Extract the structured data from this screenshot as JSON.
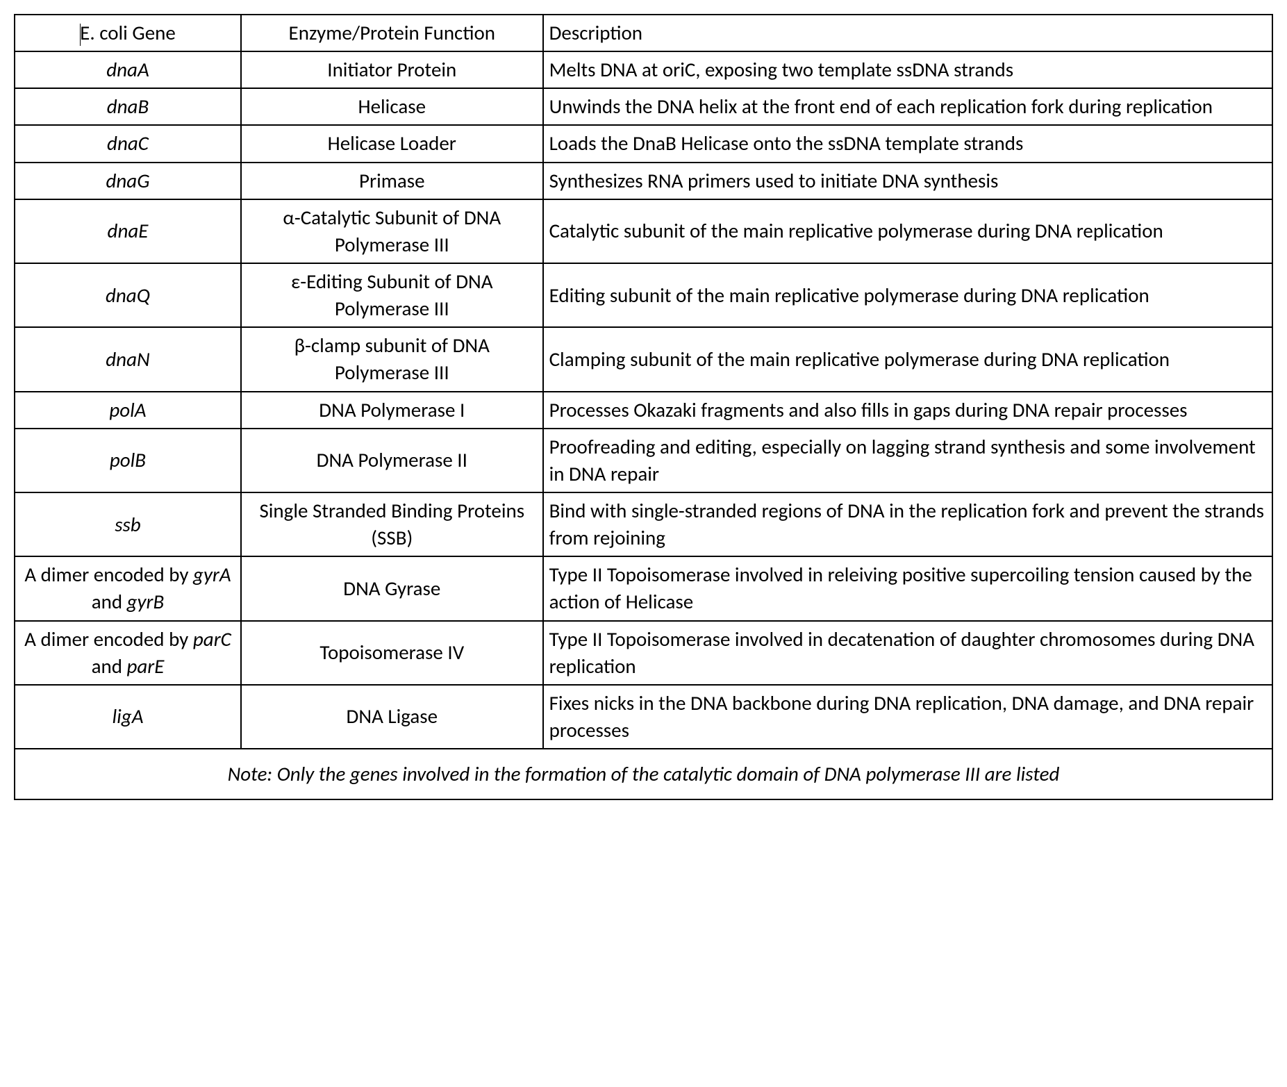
{
  "table": {
    "border_color": "#000000",
    "background_color": "#ffffff",
    "text_color": "#000000",
    "font_family": "Calibri",
    "header_fontsize": 29,
    "cell_fontsize": 29,
    "border_width": 2,
    "columns": [
      {
        "key": "gene",
        "label": "E. coli Gene",
        "width_pct": 18,
        "align": "center"
      },
      {
        "key": "function",
        "label": "Enzyme/Protein Function",
        "width_pct": 24,
        "align": "center"
      },
      {
        "key": "description",
        "label": "Description",
        "width_pct": 58,
        "align": "left"
      }
    ],
    "header": {
      "gene_prefix": "E. coli",
      "gene_suffix": " Gene",
      "function": "Enzyme/Protein Function",
      "description": "Description"
    },
    "rows": [
      {
        "gene_html": "<i>dnaA</i>",
        "function": "Initiator Protein",
        "description": "Melts DNA at oriC, exposing two template ssDNA strands"
      },
      {
        "gene_html": "<i>dnaB</i>",
        "function": "Helicase",
        "description": "Unwinds the DNA helix at the front end of each replication fork during replication"
      },
      {
        "gene_html": "<i>dnaC</i>",
        "function": "Helicase Loader",
        "description": "Loads the DnaB Helicase onto the ssDNA template strands"
      },
      {
        "gene_html": "<i>dnaG</i>",
        "function": "Primase",
        "description": "Synthesizes RNA primers used to initiate DNA synthesis"
      },
      {
        "gene_html": "<i>dnaE</i>",
        "function": "α-Catalytic Subunit of DNA Polymerase III",
        "description": "Catalytic subunit of the main replicative polymerase during DNA replication"
      },
      {
        "gene_html": "<i>dnaQ</i>",
        "function": "ε-Editing Subunit of DNA Polymerase III",
        "description": "Editing subunit of the main replicative polymerase during DNA replication"
      },
      {
        "gene_html": "<i>dnaN</i>",
        "function": "β-clamp subunit of DNA Polymerase III",
        "description": "Clamping subunit of the main replicative polymerase during DNA replication"
      },
      {
        "gene_html": "<i>polA</i>",
        "function": "DNA Polymerase I",
        "description": "Processes Okazaki fragments and also fills in gaps during DNA repair processes"
      },
      {
        "gene_html": "<i>polB</i>",
        "function": "DNA Polymerase II",
        "description": "Proofreading and editing, especially on lagging strand synthesis and some involvement in DNA repair"
      },
      {
        "gene_html": "<i>ssb</i>",
        "function": "Single Stranded Binding Proteins (SSB)",
        "description": "Bind with single-stranded regions of DNA in the replication fork and prevent the strands from rejoining"
      },
      {
        "gene_html": "<span class='plain'>A dimer encoded by </span><i>gyrA</i><span class='plain'>  and </span><i>gyrB</i>",
        "function": "DNA Gyrase",
        "description": "Type II Topoisomerase involved in releiving positive supercoiling tension caused by the action of Helicase"
      },
      {
        "gene_html": "<span class='plain'>A dimer encoded by </span><i>parC</i><span class='plain'>  and </span><i>parE</i>",
        "function": "Topoisomerase IV",
        "description": "Type II Topoisomerase involved in decatenation of daughter chromosomes during DNA replication"
      },
      {
        "gene_html": "<i>ligA</i>",
        "function": "DNA Ligase",
        "description": "Fixes nicks in the DNA backbone during DNA replication, DNA damage, and DNA repair processes"
      }
    ],
    "footnote": "Note: Only the genes involved in the formation of the catalytic domain of DNA polymerase III are listed"
  }
}
